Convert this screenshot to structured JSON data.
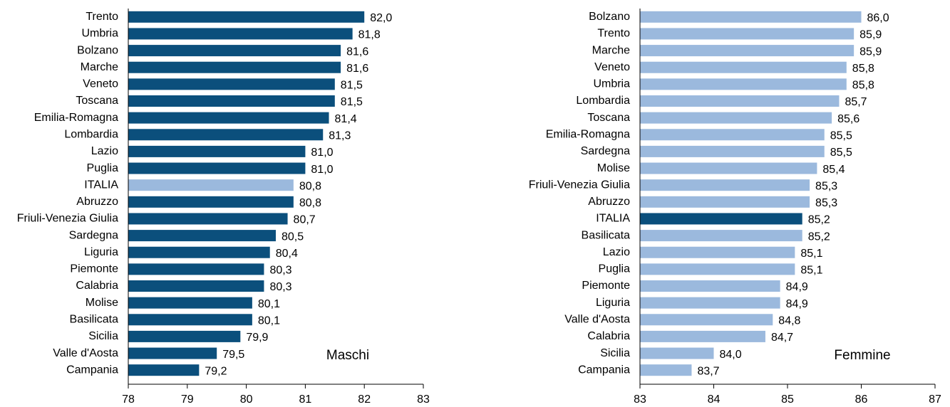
{
  "chart_data": [
    {
      "type": "bar",
      "orientation": "horizontal",
      "label": "Maschi",
      "categories": [
        "Trento",
        "Umbria",
        "Bolzano",
        "Marche",
        "Veneto",
        "Toscana",
        "Emilia-Romagna",
        "Lombardia",
        "Lazio",
        "Puglia",
        "ITALIA",
        "Abruzzo",
        "Friuli-Venezia Giulia",
        "Sardegna",
        "Liguria",
        "Piemonte",
        "Calabria",
        "Molise",
        "Basilicata",
        "Sicilia",
        "Valle d'Aosta",
        "Campania"
      ],
      "values": [
        82.0,
        81.8,
        81.6,
        81.6,
        81.5,
        81.5,
        81.4,
        81.3,
        81.0,
        81.0,
        80.8,
        80.8,
        80.7,
        80.5,
        80.4,
        80.3,
        80.3,
        80.1,
        80.1,
        79.9,
        79.5,
        79.2
      ],
      "value_labels": [
        "82,0",
        "81,8",
        "81,6",
        "81,6",
        "81,5",
        "81,5",
        "81,4",
        "81,3",
        "81,0",
        "81,0",
        "80,8",
        "80,8",
        "80,7",
        "80,5",
        "80,4",
        "80,3",
        "80,3",
        "80,1",
        "80,1",
        "79,9",
        "79,5",
        "79,2"
      ],
      "colors": [
        "#0b4f7c",
        "#0b4f7c",
        "#0b4f7c",
        "#0b4f7c",
        "#0b4f7c",
        "#0b4f7c",
        "#0b4f7c",
        "#0b4f7c",
        "#0b4f7c",
        "#0b4f7c",
        "#9bb9dd",
        "#0b4f7c",
        "#0b4f7c",
        "#0b4f7c",
        "#0b4f7c",
        "#0b4f7c",
        "#0b4f7c",
        "#0b4f7c",
        "#0b4f7c",
        "#0b4f7c",
        "#0b4f7c",
        "#0b4f7c"
      ],
      "xlim": [
        78,
        83
      ],
      "xticks": [
        78,
        79,
        80,
        81,
        82,
        83
      ]
    },
    {
      "type": "bar",
      "orientation": "horizontal",
      "label": "Femmine",
      "categories": [
        "Bolzano",
        "Trento",
        "Marche",
        "Veneto",
        "Umbria",
        "Lombardia",
        "Toscana",
        "Emilia-Romagna",
        "Sardegna",
        "Molise",
        "Friuli-Venezia Giulia",
        "Abruzzo",
        "ITALIA",
        "Basilicata",
        "Lazio",
        "Puglia",
        "Piemonte",
        "Liguria",
        "Valle d'Aosta",
        "Calabria",
        "Sicilia",
        "Campania"
      ],
      "values": [
        86.0,
        85.9,
        85.9,
        85.8,
        85.8,
        85.7,
        85.6,
        85.5,
        85.5,
        85.4,
        85.3,
        85.3,
        85.2,
        85.2,
        85.1,
        85.1,
        84.9,
        84.9,
        84.8,
        84.7,
        84.0,
        83.7
      ],
      "value_labels": [
        "86,0",
        "85,9",
        "85,9",
        "85,8",
        "85,8",
        "85,7",
        "85,6",
        "85,5",
        "85,5",
        "85,4",
        "85,3",
        "85,3",
        "85,2",
        "85,2",
        "85,1",
        "85,1",
        "84,9",
        "84,9",
        "84,8",
        "84,7",
        "84,0",
        "83,7"
      ],
      "colors": [
        "#9bb9dd",
        "#9bb9dd",
        "#9bb9dd",
        "#9bb9dd",
        "#9bb9dd",
        "#9bb9dd",
        "#9bb9dd",
        "#9bb9dd",
        "#9bb9dd",
        "#9bb9dd",
        "#9bb9dd",
        "#9bb9dd",
        "#0b4f7c",
        "#9bb9dd",
        "#9bb9dd",
        "#9bb9dd",
        "#9bb9dd",
        "#9bb9dd",
        "#9bb9dd",
        "#9bb9dd",
        "#9bb9dd",
        "#9bb9dd"
      ],
      "xlim": [
        83,
        87
      ],
      "xticks": [
        83,
        84,
        85,
        86,
        87
      ]
    }
  ]
}
